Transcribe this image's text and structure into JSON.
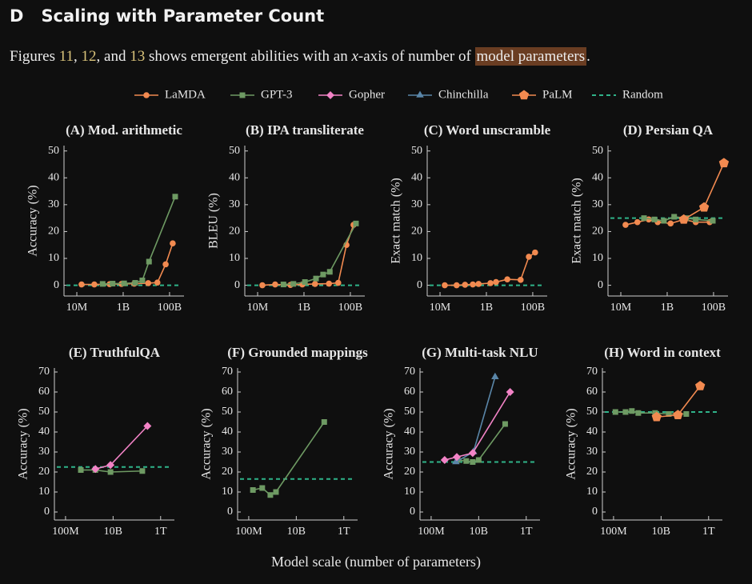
{
  "header": {
    "letter": "D",
    "title": "Scaling with Parameter Count"
  },
  "intro": [
    {
      "text": "Figures "
    },
    {
      "text": "11",
      "style": "ref"
    },
    {
      "text": ", "
    },
    {
      "text": "12",
      "style": "ref"
    },
    {
      "text": ", and "
    },
    {
      "text": "13",
      "style": "ref"
    },
    {
      "text": " shows emergent abilities with an "
    },
    {
      "text": "x",
      "style": "math"
    },
    {
      "text": "-axis of number of "
    },
    {
      "text": "model parameters",
      "style": "highlight"
    },
    {
      "text": "."
    }
  ],
  "legend": [
    {
      "name": "LaMDA",
      "color": "#f28a50",
      "marker": "circle"
    },
    {
      "name": "GPT-3",
      "color": "#6e9a63",
      "marker": "square"
    },
    {
      "name": "Gopher",
      "color": "#f283c6",
      "marker": "diamond"
    },
    {
      "name": "Chinchilla",
      "color": "#5a86a8",
      "marker": "triangle"
    },
    {
      "name": "PaLM",
      "color": "#f28a50",
      "marker": "pentagon"
    },
    {
      "name": "Random",
      "color": "#2fb389",
      "marker": "dash"
    }
  ],
  "xlabel": "Model scale (number of parameters)",
  "chart_data": [
    {
      "type": "line",
      "title": "(A) Mod. arithmetic",
      "ylabel": "Accuracy (%)",
      "xscale": "log",
      "xlim": [
        2800000,
        420000000000
      ],
      "xticks": [
        {
          "value": 10000000,
          "label": "10M"
        },
        {
          "value": 1000000000,
          "label": "1B"
        },
        {
          "value": 100000000000,
          "label": "100B"
        }
      ],
      "ylim": [
        -4,
        52
      ],
      "yticks": [
        0,
        10,
        20,
        30,
        40,
        50
      ],
      "random": 0,
      "series": [
        {
          "name": "LaMDA",
          "color": "#f28a50",
          "x": [
            16000000,
            57000000,
            260000000,
            850000000,
            3000000000,
            12000000000,
            30000000000,
            68000000000,
            137000000000
          ],
          "values": [
            0.3,
            0.3,
            0.4,
            0.5,
            0.6,
            0.8,
            1.0,
            7.8,
            15.6
          ]
        },
        {
          "name": "GPT-3",
          "color": "#6e9a63",
          "x": [
            130000000,
            350000000,
            1100000000,
            3300000000,
            6700000000,
            13000000000,
            175000000000
          ],
          "values": [
            0.5,
            0.6,
            0.7,
            0.9,
            1.8,
            8.8,
            33
          ]
        }
      ]
    },
    {
      "type": "line",
      "title": "(B) IPA transliterate",
      "ylabel": "BLEU (%)",
      "xscale": "log",
      "xlim": [
        2800000,
        420000000000
      ],
      "xticks": [
        {
          "value": 10000000,
          "label": "10M"
        },
        {
          "value": 1000000000,
          "label": "1B"
        },
        {
          "value": 100000000000,
          "label": "100B"
        }
      ],
      "ylim": [
        -4,
        52
      ],
      "yticks": [
        0,
        10,
        20,
        30,
        40,
        50
      ],
      "random": 0,
      "series": [
        {
          "name": "LaMDA",
          "color": "#f28a50",
          "x": [
            16000000,
            57000000,
            260000000,
            850000000,
            3000000000,
            12000000000,
            30000000000,
            68000000000,
            137000000000
          ],
          "values": [
            0,
            0.3,
            0.1,
            0.3,
            0.5,
            0.6,
            0.9,
            15,
            22.5
          ]
        },
        {
          "name": "GPT-3",
          "color": "#6e9a63",
          "x": [
            130000000,
            350000000,
            1100000000,
            3300000000,
            6700000000,
            13000000000,
            175000000000
          ],
          "values": [
            0.3,
            0.5,
            1.2,
            2.5,
            4.0,
            5.0,
            23
          ]
        }
      ]
    },
    {
      "type": "line",
      "title": "(C) Word unscramble",
      "ylabel": "Exact match (%)",
      "xscale": "log",
      "xlim": [
        2800000,
        420000000000
      ],
      "xticks": [
        {
          "value": 10000000,
          "label": "10M"
        },
        {
          "value": 1000000000,
          "label": "1B"
        },
        {
          "value": 100000000000,
          "label": "100B"
        }
      ],
      "ylim": [
        -4,
        52
      ],
      "yticks": [
        0,
        10,
        20,
        30,
        40,
        50
      ],
      "random": 0,
      "series": [
        {
          "name": "LaMDA",
          "color": "#f28a50",
          "x": [
            16000000,
            52000000,
            120000000,
            260000000,
            460000000,
            1500000000,
            2600000000,
            8000000000,
            30000000000,
            68000000000,
            126000000000
          ],
          "values": [
            0,
            0,
            0.2,
            0.3,
            0.5,
            0.8,
            1.2,
            2.2,
            2.0,
            10.6,
            12.2
          ]
        }
      ]
    },
    {
      "type": "line",
      "title": "(D) Persian QA",
      "ylabel": "Exact match (%)",
      "xscale": "log",
      "xlim": [
        2800000,
        420000000000
      ],
      "xticks": [
        {
          "value": 10000000,
          "label": "10M"
        },
        {
          "value": 1000000000,
          "label": "1B"
        },
        {
          "value": 100000000000,
          "label": "100B"
        }
      ],
      "ylim": [
        -4,
        52
      ],
      "yticks": [
        0,
        10,
        20,
        30,
        40,
        50
      ],
      "random": 25,
      "series": [
        {
          "name": "LaMDA",
          "color": "#f28a50",
          "x": [
            16000000,
            52000000,
            160000000,
            390000000,
            1400000000,
            5200000000,
            17000000000,
            68000000000
          ],
          "values": [
            22.5,
            23.5,
            24.5,
            23.5,
            23,
            24.5,
            23.5,
            23.5
          ]
        },
        {
          "name": "GPT-3",
          "color": "#6e9a63",
          "x": [
            100000000,
            280000000,
            720000000,
            2000000000,
            6700000000,
            17000000000,
            93000000000
          ],
          "values": [
            25,
            24.5,
            24,
            25.5,
            25,
            24.5,
            24
          ]
        },
        {
          "name": "PaLM",
          "color": "#f28a50",
          "x": [
            5200000000,
            39000000000,
            280000000000
          ],
          "values": [
            24.5,
            29,
            45.5
          ]
        }
      ]
    },
    {
      "type": "line",
      "title": "(E) TruthfulQA",
      "ylabel": "Accuracy (%)",
      "xscale": "log",
      "xlim": [
        34000000,
        3800000000000
      ],
      "xticks": [
        {
          "value": 100000000,
          "label": "100M"
        },
        {
          "value": 10000000000,
          "label": "10B"
        },
        {
          "value": 1000000000000,
          "label": "1T"
        }
      ],
      "ylim": [
        -4,
        72
      ],
      "yticks": [
        0,
        10,
        20,
        30,
        40,
        50,
        60,
        70
      ],
      "random": 22.5,
      "series": [
        {
          "name": "GPT-3",
          "color": "#6e9a63",
          "x": [
            440000000,
            1800000000,
            7800000000,
            170000000000
          ],
          "values": [
            21,
            21,
            20,
            20.5
          ]
        },
        {
          "name": "Gopher",
          "color": "#f283c6",
          "x": [
            1800000000,
            7800000000,
            280000000000
          ],
          "values": [
            21.5,
            23.5,
            43
          ]
        }
      ]
    },
    {
      "type": "line",
      "title": "(F) Grounded mappings",
      "ylabel": "Accuracy (%)",
      "xscale": "log",
      "xlim": [
        34000000,
        3800000000000
      ],
      "xticks": [
        {
          "value": 100000000,
          "label": "100M"
        },
        {
          "value": 10000000000,
          "label": "10B"
        },
        {
          "value": 1000000000000,
          "label": "1T"
        }
      ],
      "ylim": [
        -4,
        72
      ],
      "yticks": [
        0,
        10,
        20,
        30,
        40,
        50,
        60,
        70
      ],
      "random": 16.5,
      "series": [
        {
          "name": "GPT-3",
          "color": "#6e9a63",
          "x": [
            150000000,
            370000000,
            810000000,
            1400000000,
            150000000000
          ],
          "values": [
            11,
            12,
            8.5,
            10,
            45
          ]
        }
      ]
    },
    {
      "type": "line",
      "title": "(G) Multi-task NLU",
      "ylabel": "Accuracy (%)",
      "xscale": "log",
      "xlim": [
        34000000,
        3800000000000
      ],
      "xticks": [
        {
          "value": 100000000,
          "label": "100M"
        },
        {
          "value": 10000000000,
          "label": "10B"
        },
        {
          "value": 1000000000000,
          "label": "1T"
        }
      ],
      "ylim": [
        -4,
        72
      ],
      "yticks": [
        0,
        10,
        20,
        30,
        40,
        50,
        60,
        70
      ],
      "random": 25,
      "series": [
        {
          "name": "GPT-3",
          "color": "#6e9a63",
          "x": [
            1300000000,
            3000000000,
            5600000000,
            10000000000,
            130000000000
          ],
          "values": [
            26,
            25.5,
            25,
            26,
            44
          ]
        },
        {
          "name": "Chinchilla",
          "color": "#5a86a8",
          "x": [
            1100000000,
            6000000000,
            49000000000
          ],
          "values": [
            25,
            30,
            67.5
          ]
        },
        {
          "name": "Gopher",
          "color": "#f283c6",
          "x": [
            370000000,
            1200000000,
            5600000000,
            210000000000
          ],
          "values": [
            26,
            27.5,
            29.5,
            60
          ]
        }
      ]
    },
    {
      "type": "line",
      "title": "(H) Word in context",
      "ylabel": "Accuracy (%)",
      "xscale": "log",
      "xlim": [
        34000000,
        3800000000000
      ],
      "xticks": [
        {
          "value": 100000000,
          "label": "100M"
        },
        {
          "value": 10000000000,
          "label": "10B"
        },
        {
          "value": 1000000000000,
          "label": "1T"
        }
      ],
      "ylim": [
        -4,
        72
      ],
      "yticks": [
        0,
        10,
        20,
        30,
        40,
        50,
        60,
        70
      ],
      "random": 50,
      "series": [
        {
          "name": "GPT-3",
          "color": "#6e9a63",
          "x": [
            120000000,
            320000000,
            590000000,
            1100000000,
            5600000000,
            21000000000,
            115000000000
          ],
          "values": [
            50,
            50,
            50.5,
            49.5,
            49.5,
            49,
            49
          ]
        },
        {
          "name": "PaLM",
          "color": "#f28a50",
          "x": [
            6500000000,
            51000000000,
            440000000000
          ],
          "values": [
            47.5,
            48.5,
            63
          ]
        }
      ]
    }
  ]
}
